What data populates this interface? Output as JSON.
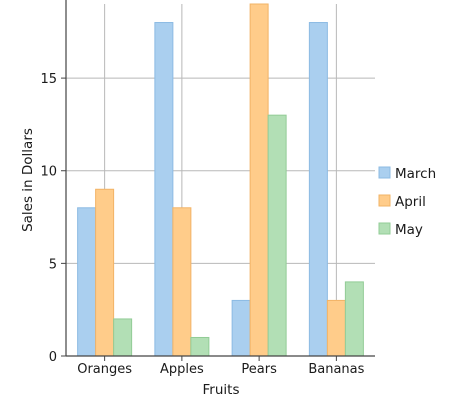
{
  "chart_data": {
    "type": "bar",
    "title": "",
    "xlabel": "Fruits",
    "ylabel": "Sales in Dollars",
    "categories": [
      "Oranges",
      "Apples",
      "Pears",
      "Bananas"
    ],
    "series": [
      {
        "name": "March",
        "values": [
          8,
          18,
          3,
          18
        ],
        "color": "#aacfef",
        "stroke": "#8cbbe3"
      },
      {
        "name": "April",
        "values": [
          9,
          8,
          19,
          3
        ],
        "color": "#ffcc8a",
        "stroke": "#f2b366"
      },
      {
        "name": "May",
        "values": [
          2,
          1,
          13,
          4
        ],
        "color": "#b2dfb5",
        "stroke": "#92cc96"
      }
    ],
    "ylim": [
      0,
      19
    ],
    "yticks": [
      0,
      5,
      10,
      15
    ],
    "grid": true,
    "legend_position": "right"
  }
}
